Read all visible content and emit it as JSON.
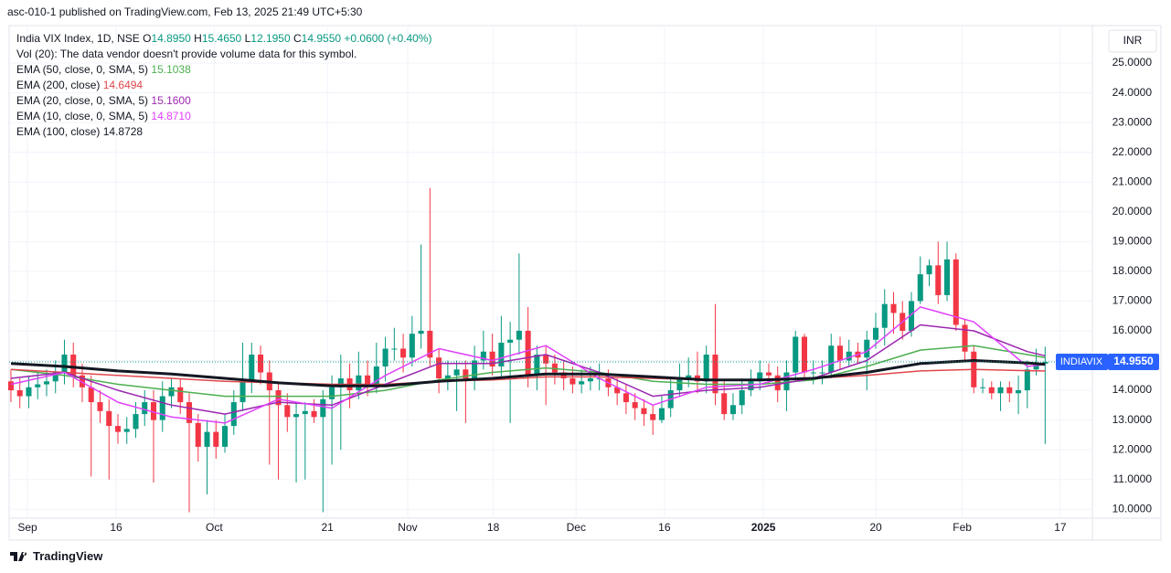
{
  "header": {
    "title": "asc-010-1 published on TradingView.com, Feb 13, 2025 21:49 UTC+5:30"
  },
  "footer": {
    "brand": "TradingView"
  },
  "chart_data": {
    "type": "candlestick",
    "legend": {
      "symbol": "India VIX Index, 1D, NSE",
      "quote": [
        {
          "label": "O",
          "value": "14.8950"
        },
        {
          "label": "H",
          "value": "15.4650"
        },
        {
          "label": "L",
          "value": "12.1950"
        },
        {
          "label": "C",
          "value": "14.9550"
        }
      ],
      "change": "+0.0600 (+0.40%)",
      "volume_note": "Vol (20): The data vendor doesn't provide volume data for this symbol."
    },
    "currency": "INR",
    "last_price": {
      "name": "INDIAVIX",
      "label": "14.9550",
      "color": "#2962ff"
    },
    "up_color": "#089981",
    "down_color": "#f23645",
    "grid": true,
    "xlim": [
      -0.2,
      121.3
    ],
    "xticks": [
      {
        "value": 1.85,
        "label": "Sep"
      },
      {
        "value": 11.8,
        "label": "16"
      },
      {
        "value": 22.8,
        "label": "Oct"
      },
      {
        "value": 35.5,
        "label": "21"
      },
      {
        "value": 44.5,
        "label": "Nov"
      },
      {
        "value": 54.1,
        "label": "18"
      },
      {
        "value": 63.4,
        "label": "Dec"
      },
      {
        "value": 73.3,
        "label": "16"
      },
      {
        "value": 84.4,
        "label": "2025"
      },
      {
        "value": 97.0,
        "label": "20"
      },
      {
        "value": 106.7,
        "label": "Feb"
      },
      {
        "value": 117.7,
        "label": "17"
      }
    ],
    "ylim": [
      9.7,
      26.2
    ],
    "yticks": [
      {
        "value": 10,
        "label": "10.0000"
      },
      {
        "value": 11,
        "label": "11.0000"
      },
      {
        "value": 12,
        "label": "12.0000"
      },
      {
        "value": 13,
        "label": "13.0000"
      },
      {
        "value": 14,
        "label": "14.0000"
      },
      {
        "value": 15,
        "label": "15.0000"
      },
      {
        "value": 16,
        "label": "16.0000"
      },
      {
        "value": 17,
        "label": "17.0000"
      },
      {
        "value": 18,
        "label": "18.0000"
      },
      {
        "value": 19,
        "label": "19.0000"
      },
      {
        "value": 20,
        "label": "20.0000"
      },
      {
        "value": 21,
        "label": "21.0000"
      },
      {
        "value": 22,
        "label": "22.0000"
      },
      {
        "value": 23,
        "label": "23.0000"
      },
      {
        "value": 24,
        "label": "24.0000"
      },
      {
        "value": 25,
        "label": "25.0000"
      }
    ],
    "open": [
      14.3,
      14.0,
      13.8,
      14.1,
      14.2,
      14.3,
      14.6,
      15.2,
      14.5,
      14.1,
      13.6,
      13.3,
      12.8,
      12.6,
      12.7,
      13.2,
      13.6,
      13.0,
      13.8,
      14.1,
      13.6,
      12.9,
      12.1,
      12.6,
      12.1,
      12.8,
      13.6,
      14.3,
      15.2,
      14.6,
      14.0,
      13.5,
      13.1,
      13.2,
      13.3,
      13.1,
      13.7,
      14.1,
      14.4,
      14.0,
      14.5,
      14.2,
      14.8,
      15.4,
      15.4,
      15.1,
      15.9,
      16.0,
      15.1,
      14.4,
      14.5,
      14.7,
      14.4,
      15.0,
      15.3,
      14.8,
      15.6,
      15.7,
      16.0,
      14.5,
      15.2,
      14.9,
      14.6,
      14.4,
      14.2,
      14.3,
      14.4,
      14.4,
      14.1,
      13.9,
      13.6,
      13.4,
      13.2,
      13.0,
      13.4,
      14.0,
      14.4,
      14.5,
      14.3,
      15.2,
      13.9,
      13.2,
      13.5,
      14.0,
      14.3,
      14.6,
      14.5,
      14.0,
      14.6,
      15.8,
      14.6,
      14.6,
      14.6,
      15.5,
      15.0,
      15.3,
      15.1,
      15.7,
      16.1,
      16.9,
      16.6,
      16.0,
      17.0,
      17.9,
      18.2,
      17.2,
      18.4,
      16.2,
      15.3,
      14.1,
      14.1,
      13.9,
      14.1,
      13.9,
      14.0,
      14.7,
      14.895
    ],
    "high": [
      14.7,
      14.4,
      14.5,
      14.6,
      14.7,
      15.0,
      15.7,
      15.6,
      14.9,
      14.5,
      14.0,
      13.7,
      13.2,
      13.1,
      13.6,
      14.0,
      14.0,
      14.3,
      14.4,
      14.4,
      13.9,
      13.2,
      13.0,
      13.0,
      13.2,
      14.0,
      15.6,
      15.6,
      15.5,
      15.0,
      14.3,
      13.9,
      13.6,
      13.6,
      13.7,
      14.0,
      14.5,
      15.2,
      14.9,
      15.3,
      15.0,
      15.6,
      15.8,
      16.1,
      15.9,
      16.5,
      18.9,
      20.8,
      15.4,
      15.0,
      15.0,
      15.0,
      15.5,
      16.0,
      15.9,
      16.5,
      16.3,
      18.6,
      16.8,
      15.5,
      15.5,
      15.2,
      15.0,
      14.8,
      14.7,
      14.8,
      14.9,
      14.7,
      14.4,
      14.2,
      13.9,
      13.7,
      13.5,
      13.8,
      14.4,
      14.9,
      15.1,
      15.3,
      15.5,
      16.9,
      14.3,
      13.9,
      14.4,
      14.7,
      15.0,
      14.9,
      14.8,
      15.0,
      16.0,
      15.9,
      15.0,
      15.0,
      15.9,
      15.8,
      15.7,
      15.6,
      16.0,
      16.6,
      17.4,
      17.3,
      17.0,
      17.3,
      18.5,
      18.4,
      19.0,
      19.0,
      18.6,
      16.4,
      15.5,
      14.4,
      14.3,
      14.3,
      14.3,
      14.5,
      15.0,
      15.4,
      15.465
    ],
    "low": [
      13.6,
      13.4,
      13.4,
      13.7,
      13.8,
      13.9,
      14.2,
      14.1,
      13.6,
      11.1,
      12.9,
      11.0,
      12.2,
      12.2,
      12.4,
      12.8,
      10.9,
      12.6,
      13.4,
      13.2,
      9.9,
      11.6,
      10.5,
      11.7,
      11.9,
      12.5,
      13.3,
      13.9,
      14.2,
      11.5,
      11.0,
      12.6,
      10.9,
      11.0,
      12.9,
      9.9,
      11.5,
      12.0,
      13.4,
      13.7,
      13.8,
      13.9,
      14.3,
      15.0,
      14.6,
      14.8,
      15.4,
      14.8,
      13.9,
      14.0,
      13.3,
      12.9,
      14.0,
      14.7,
      14.5,
      14.4,
      12.9,
      15.2,
      14.1,
      14.0,
      13.5,
      14.2,
      14.0,
      13.9,
      13.9,
      14.0,
      14.0,
      13.8,
      13.5,
      13.2,
      13.0,
      12.8,
      12.5,
      12.9,
      13.1,
      13.8,
      14.1,
      13.9,
      13.9,
      13.5,
      13.0,
      13.0,
      13.2,
      13.8,
      14.0,
      14.2,
      13.6,
      13.3,
      14.3,
      14.3,
      14.2,
      14.2,
      14.4,
      14.7,
      14.8,
      14.9,
      14.0,
      15.4,
      15.5,
      15.9,
      15.7,
      15.8,
      16.9,
      17.5,
      16.9,
      17.0,
      16.0,
      15.0,
      13.9,
      13.9,
      13.7,
      13.3,
      13.6,
      13.2,
      13.4,
      14.5,
      12.195
    ],
    "close": [
      14.0,
      13.8,
      14.1,
      14.2,
      14.3,
      14.6,
      15.2,
      14.5,
      14.1,
      13.6,
      13.3,
      12.8,
      12.6,
      12.7,
      13.2,
      13.6,
      13.0,
      13.8,
      14.1,
      13.6,
      12.9,
      12.1,
      12.6,
      12.1,
      12.8,
      13.6,
      14.3,
      15.2,
      14.6,
      14.0,
      13.5,
      13.1,
      13.2,
      13.3,
      13.1,
      13.7,
      14.1,
      14.4,
      14.0,
      14.5,
      14.2,
      14.8,
      15.4,
      15.4,
      15.1,
      15.9,
      16.0,
      15.1,
      14.4,
      14.5,
      14.7,
      14.4,
      15.0,
      15.3,
      14.8,
      15.6,
      15.7,
      16.0,
      14.5,
      15.2,
      14.9,
      14.6,
      14.4,
      14.2,
      14.3,
      14.4,
      14.4,
      14.1,
      13.9,
      13.6,
      13.4,
      13.2,
      13.0,
      13.4,
      14.0,
      14.4,
      14.5,
      14.3,
      15.2,
      13.9,
      13.2,
      13.5,
      14.0,
      14.3,
      14.6,
      14.5,
      14.0,
      14.6,
      15.8,
      14.6,
      14.6,
      14.6,
      15.5,
      15.0,
      15.3,
      15.1,
      15.7,
      16.1,
      16.9,
      16.6,
      16.0,
      17.0,
      17.9,
      18.2,
      17.2,
      18.4,
      16.2,
      15.3,
      14.1,
      14.1,
      13.9,
      14.1,
      13.9,
      14.0,
      14.7,
      14.9,
      14.955
    ],
    "overlays": [
      {
        "name": "EMA (50, close, 0, SMA, 5)",
        "value_label": "15.1038",
        "color": "#4caf50",
        "width": 1.5,
        "x": [
          0,
          6,
          12,
          18,
          24,
          30,
          36,
          42,
          48,
          54,
          60,
          66,
          72,
          78,
          84,
          90,
          96,
          102,
          108,
          114,
          116
        ],
        "values": [
          14.7,
          14.5,
          14.2,
          14.0,
          13.8,
          13.8,
          13.8,
          14.0,
          14.35,
          14.6,
          14.75,
          14.6,
          14.3,
          14.2,
          14.2,
          14.35,
          14.8,
          15.35,
          15.5,
          15.2,
          15.1
        ]
      },
      {
        "name": "EMA (200, close)",
        "value_label": "14.6494",
        "color": "#e0474c",
        "width": 1.5,
        "x": [
          0,
          6,
          12,
          18,
          24,
          30,
          36,
          42,
          48,
          54,
          60,
          66,
          72,
          78,
          84,
          90,
          96,
          102,
          108,
          114,
          116
        ],
        "values": [
          14.7,
          14.6,
          14.5,
          14.4,
          14.3,
          14.25,
          14.2,
          14.2,
          14.3,
          14.35,
          14.45,
          14.45,
          14.4,
          14.35,
          14.35,
          14.4,
          14.5,
          14.65,
          14.7,
          14.66,
          14.65
        ]
      },
      {
        "name": "EMA (20, close, 0, SMA, 5)",
        "value_label": "15.1600",
        "color": "#9c27b0",
        "width": 1.5,
        "x": [
          0,
          6,
          12,
          18,
          24,
          30,
          36,
          42,
          48,
          54,
          60,
          66,
          72,
          78,
          84,
          90,
          96,
          102,
          108,
          114,
          116
        ],
        "values": [
          14.4,
          14.6,
          14.0,
          13.5,
          13.2,
          13.6,
          13.5,
          14.2,
          14.9,
          14.9,
          15.2,
          14.6,
          13.8,
          14.0,
          14.1,
          14.4,
          15.0,
          16.2,
          16.0,
          15.3,
          15.16
        ]
      },
      {
        "name": "EMA (10, close, 0, SMA, 5)",
        "value_label": "14.8710",
        "color": "#e040fb",
        "width": 1.5,
        "x": [
          0,
          6,
          12,
          18,
          24,
          30,
          36,
          42,
          48,
          54,
          60,
          66,
          72,
          78,
          84,
          90,
          96,
          102,
          108,
          114,
          116
        ],
        "values": [
          14.2,
          14.6,
          13.6,
          13.1,
          12.9,
          13.7,
          13.4,
          14.5,
          15.4,
          15.0,
          15.5,
          14.4,
          13.5,
          14.1,
          14.2,
          14.7,
          15.3,
          16.8,
          16.3,
          14.8,
          14.87
        ]
      },
      {
        "name": "EMA (100, close)",
        "value_label": "14.8728",
        "color": "#131722",
        "width": 3,
        "x": [
          0,
          6,
          12,
          18,
          24,
          30,
          36,
          42,
          48,
          54,
          60,
          66,
          72,
          78,
          84,
          90,
          96,
          102,
          108,
          114,
          116
        ],
        "values": [
          14.9,
          14.8,
          14.65,
          14.55,
          14.4,
          14.25,
          14.15,
          14.15,
          14.3,
          14.4,
          14.55,
          14.55,
          14.45,
          14.35,
          14.35,
          14.4,
          14.6,
          14.9,
          15.0,
          14.92,
          14.87
        ]
      }
    ]
  }
}
